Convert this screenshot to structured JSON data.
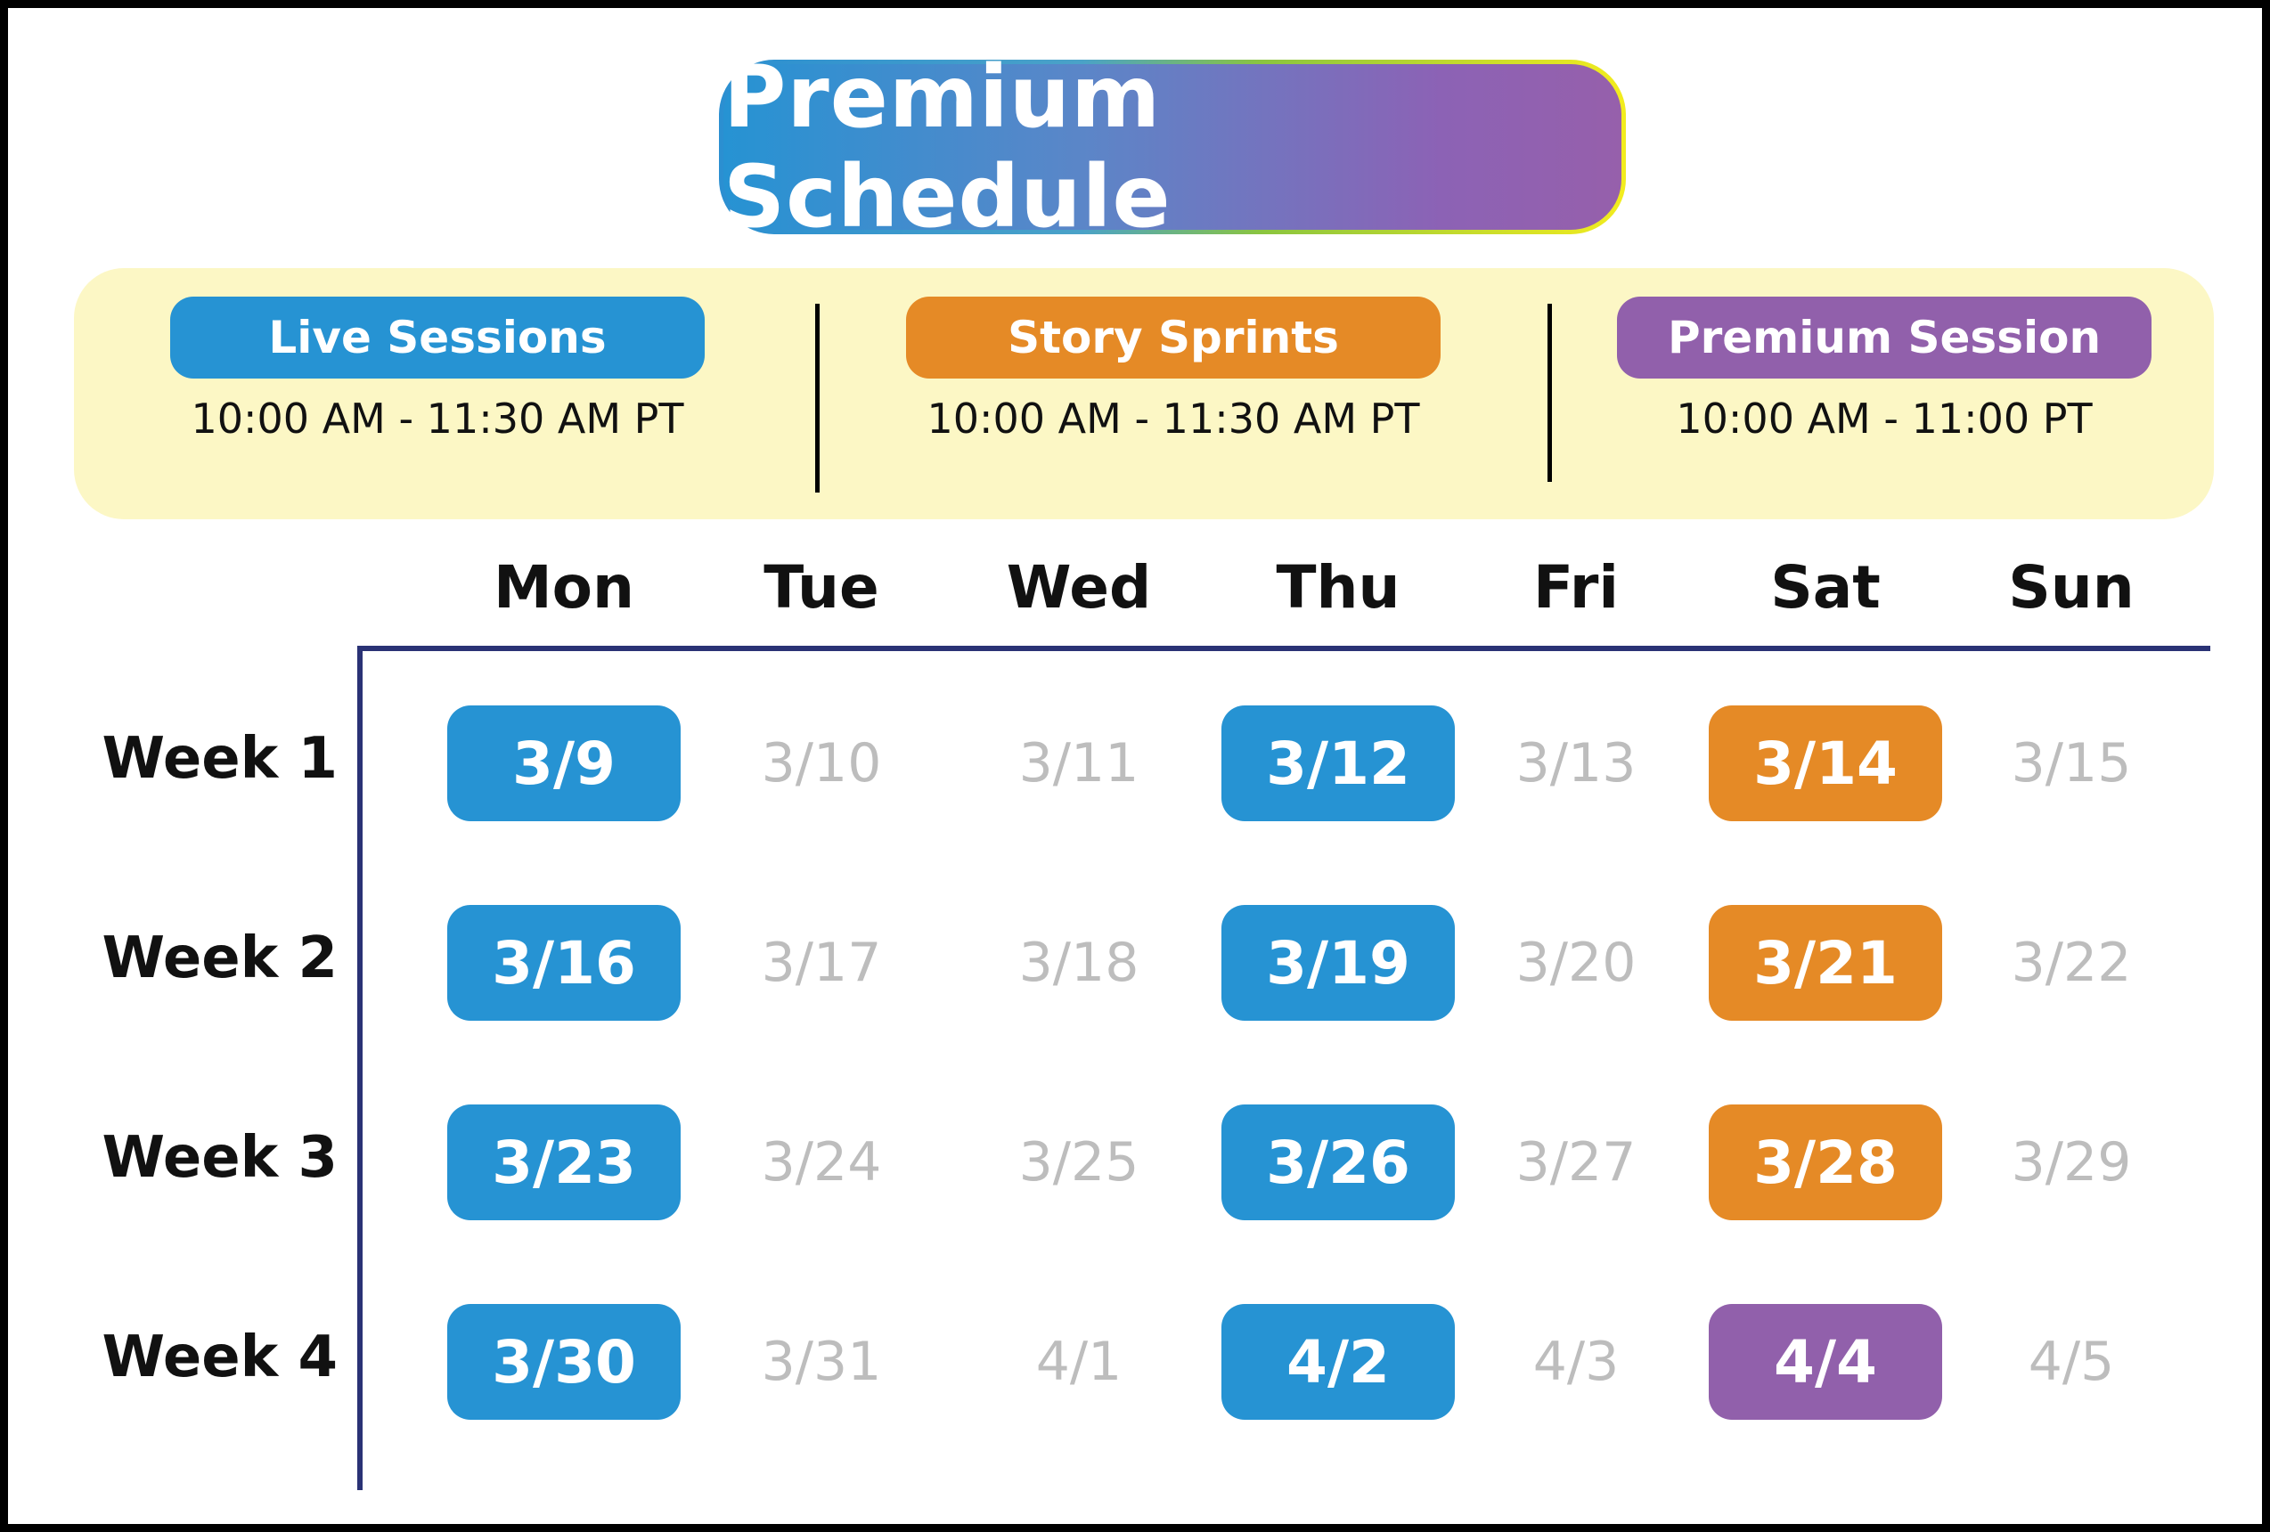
{
  "title": "Premium Schedule",
  "colors": {
    "live": "#2693d3",
    "sprint": "#e58a26",
    "premium": "#9160ab",
    "inactive_text": "#bdbdbd"
  },
  "legend": [
    {
      "label": "Live Sessions",
      "time": "10:00 AM - 11:30 AM PT",
      "color": "#2693d3"
    },
    {
      "label": "Story Sprints",
      "time": "10:00 AM - 11:30 AM PT",
      "color": "#e58a26"
    },
    {
      "label": "Premium Session",
      "time": "10:00 AM - 11:00 PT",
      "color": "#9160ab"
    }
  ],
  "days": [
    "Mon",
    "Tue",
    "Wed",
    "Thu",
    "Fri",
    "Sat",
    "Sun"
  ],
  "weeks": [
    {
      "label": "Week 1",
      "dates": [
        {
          "date": "3/9",
          "type": "live"
        },
        {
          "date": "3/10",
          "type": "none"
        },
        {
          "date": "3/11",
          "type": "none"
        },
        {
          "date": "3/12",
          "type": "live"
        },
        {
          "date": "3/13",
          "type": "none"
        },
        {
          "date": "3/14",
          "type": "sprint"
        },
        {
          "date": "3/15",
          "type": "none"
        }
      ]
    },
    {
      "label": "Week 2",
      "dates": [
        {
          "date": "3/16",
          "type": "live"
        },
        {
          "date": "3/17",
          "type": "none"
        },
        {
          "date": "3/18",
          "type": "none"
        },
        {
          "date": "3/19",
          "type": "live"
        },
        {
          "date": "3/20",
          "type": "none"
        },
        {
          "date": "3/21",
          "type": "sprint"
        },
        {
          "date": "3/22",
          "type": "none"
        }
      ]
    },
    {
      "label": "Week 3",
      "dates": [
        {
          "date": "3/23",
          "type": "live"
        },
        {
          "date": "3/24",
          "type": "none"
        },
        {
          "date": "3/25",
          "type": "none"
        },
        {
          "date": "3/26",
          "type": "live"
        },
        {
          "date": "3/27",
          "type": "none"
        },
        {
          "date": "3/28",
          "type": "sprint"
        },
        {
          "date": "3/29",
          "type": "none"
        }
      ]
    },
    {
      "label": "Week 4",
      "dates": [
        {
          "date": "3/30",
          "type": "live"
        },
        {
          "date": "3/31",
          "type": "none"
        },
        {
          "date": "4/1",
          "type": "none"
        },
        {
          "date": "4/2",
          "type": "live"
        },
        {
          "date": "4/3",
          "type": "none"
        },
        {
          "date": "4/4",
          "type": "premium"
        },
        {
          "date": "4/5",
          "type": "none"
        }
      ]
    }
  ]
}
